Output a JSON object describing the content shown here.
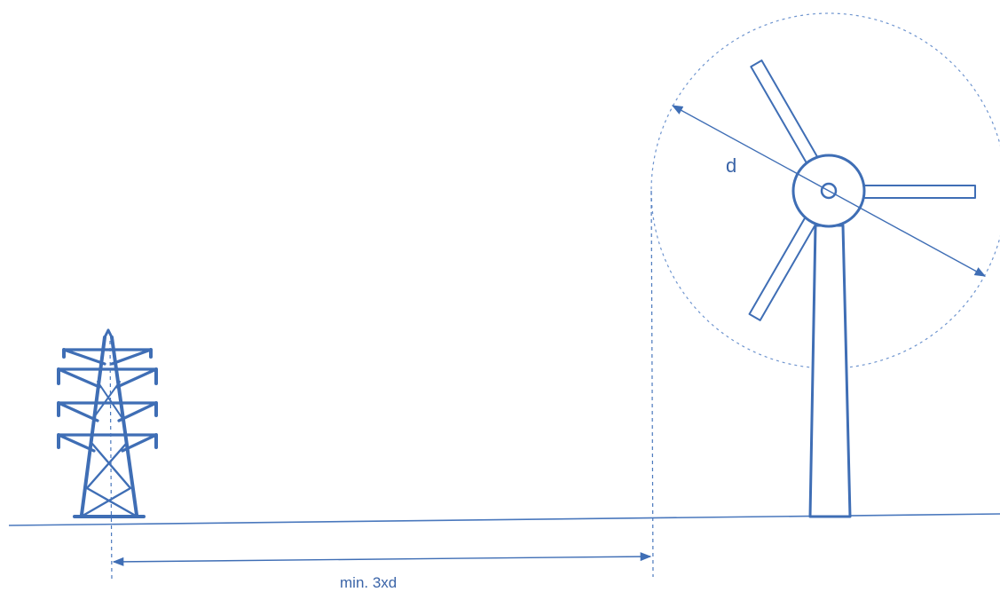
{
  "labels": {
    "rotor_diameter": "d",
    "min_distance": "min. 3xd"
  },
  "colors": {
    "stroke": "#3f6eb5",
    "text": "#3a64a8"
  },
  "objects": {
    "pylon": "transmission-tower",
    "turbine": "wind-turbine"
  }
}
